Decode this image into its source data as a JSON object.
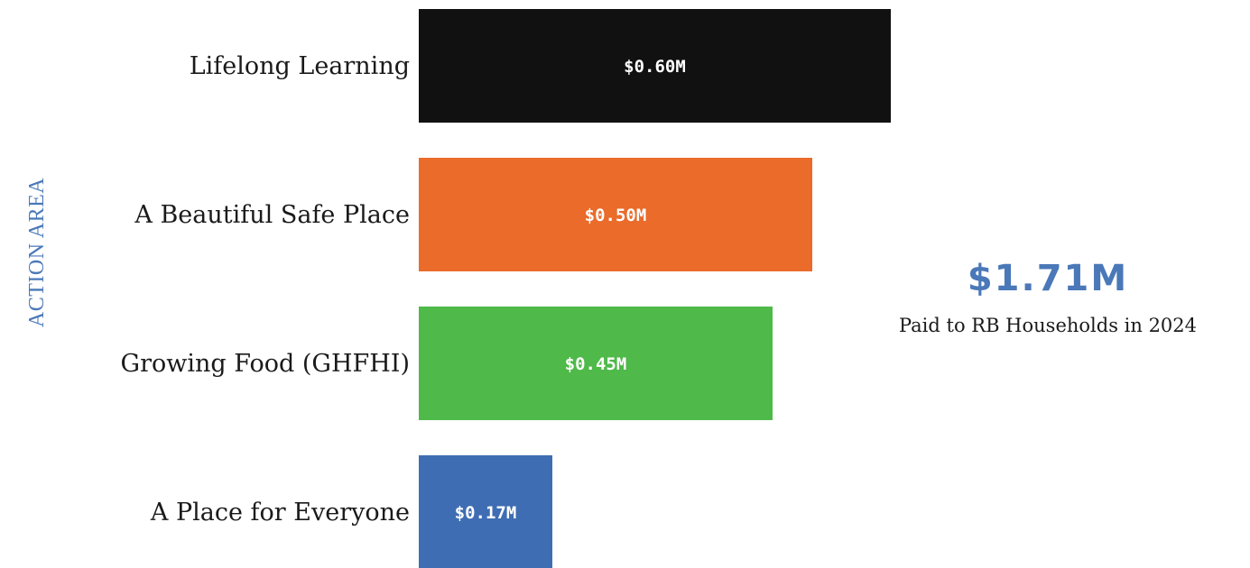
{
  "chart_data": {
    "type": "bar",
    "orientation": "horizontal",
    "ylabel": "ACTION AREA",
    "categories": [
      "Lifelong Learning",
      "A Beautiful Safe Place",
      "Growing Food (GHFHI)",
      "A Place for Everyone"
    ],
    "values": [
      0.6,
      0.5,
      0.45,
      0.17
    ],
    "data_labels": [
      "$0.60M",
      "$0.50M",
      "$0.45M",
      "$0.17M"
    ],
    "colors": [
      "#111111",
      "#ea6b2a",
      "#4fb94a",
      "#3e6db3"
    ],
    "xlim": [
      0,
      0.6
    ],
    "grid": false,
    "legend": "none"
  },
  "summary": {
    "total": "$1.71M",
    "caption": "Paid to RB Households in 2024"
  }
}
